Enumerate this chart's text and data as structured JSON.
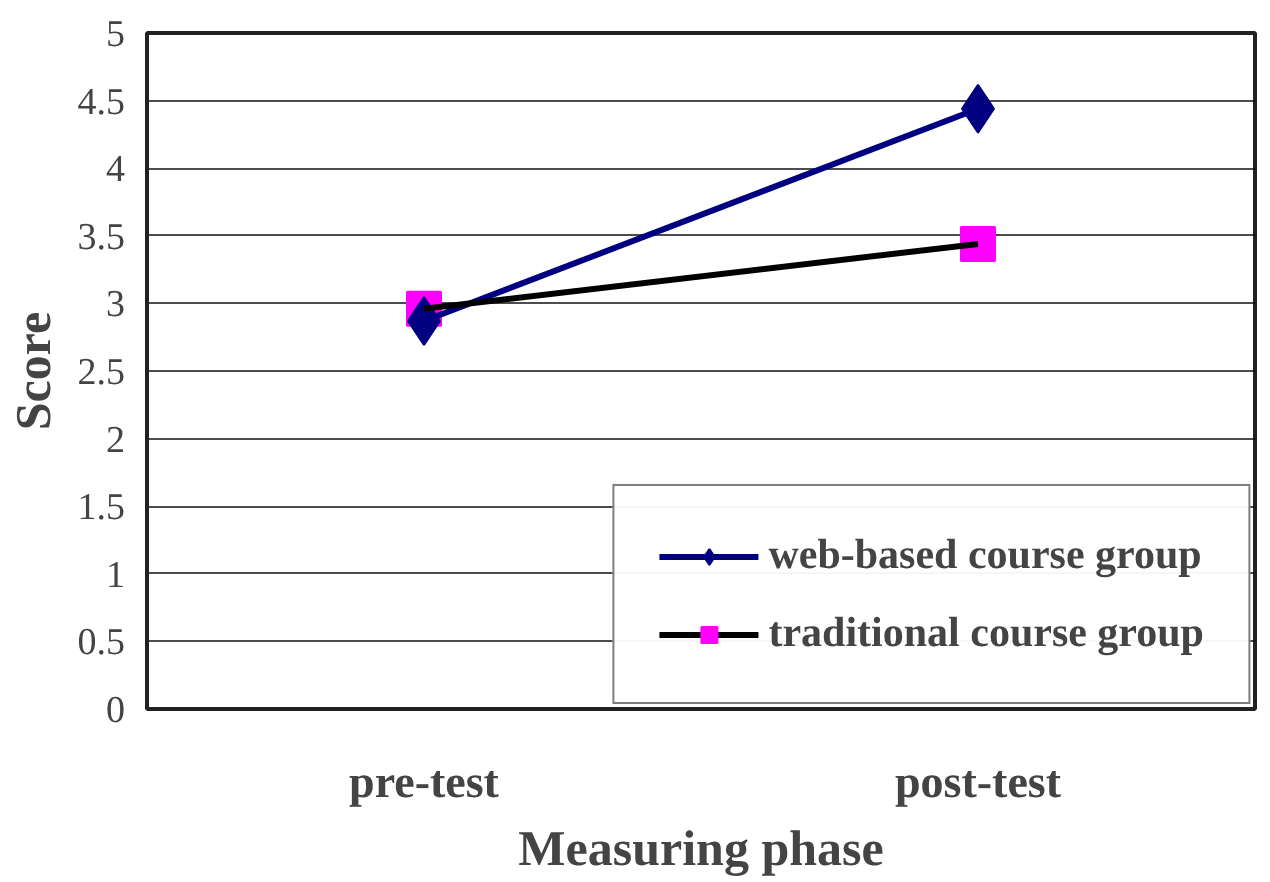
{
  "chart_data": {
    "type": "line",
    "xlabel": "Measuring phase",
    "ylabel": "Score",
    "categories": [
      "pre-test",
      "post-test"
    ],
    "series": [
      {
        "name": "web-based course group",
        "color": "#000080",
        "marker": "diamond",
        "values": [
          2.87,
          4.44
        ]
      },
      {
        "name": "traditional course group",
        "color": "#000000",
        "marker": "square",
        "colors": [
          "#ff00ff",
          "#ff00ff"
        ],
        "values": [
          2.96,
          3.44
        ]
      }
    ],
    "ylim": [
      0,
      5
    ],
    "yticks": [
      0,
      0.5,
      1,
      1.5,
      2,
      2.5,
      3,
      3.5,
      4,
      4.5,
      5
    ],
    "grid": "y",
    "legend": "bottom right",
    "line_style": "solid"
  }
}
